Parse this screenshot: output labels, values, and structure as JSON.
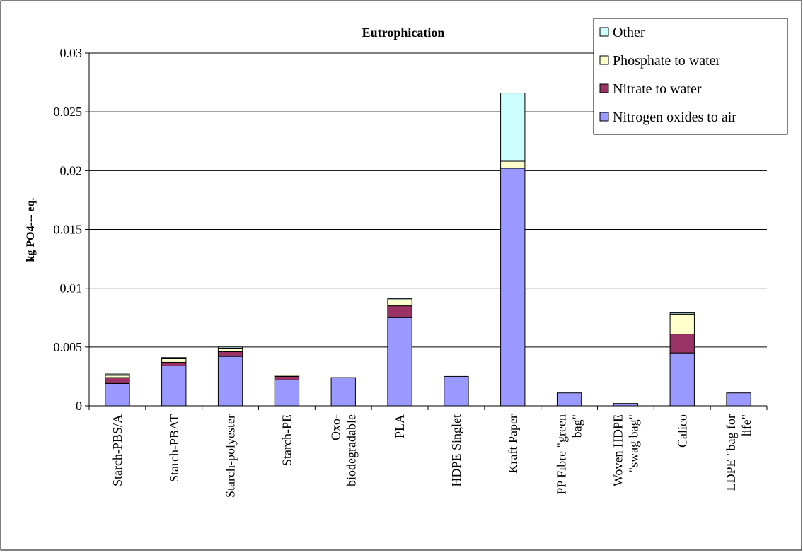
{
  "chart_data": {
    "type": "bar",
    "stacked": true,
    "title": "Eutrophication",
    "xlabel": "",
    "ylabel": "kg PO4--- eq.",
    "ylim": [
      0,
      0.03
    ],
    "yticks": [
      "0",
      "0.005",
      "0.01",
      "0.015",
      "0.02",
      "0.025",
      "0.03"
    ],
    "grid": "horizontal",
    "legend_position": "top-right",
    "categories": [
      "Starch-PBS/A",
      "Starch-PBAT",
      "Starch-polyester",
      "Starch-PE",
      "Oxo-biodegradable",
      "PLA",
      "HDPE Singlet",
      "Kraft Paper",
      "PP Fibre \"green bag\"",
      "Woven HDPE \"swag bag\"",
      "Calico",
      "LDPE \"bag for life\""
    ],
    "category_lines": [
      [
        "Starch-PBS/A"
      ],
      [
        "Starch-PBAT"
      ],
      [
        "Starch-polyester"
      ],
      [
        "Starch-PE"
      ],
      [
        "Oxo-",
        "biodegradable"
      ],
      [
        "PLA"
      ],
      [
        "HDPE Singlet"
      ],
      [
        "Kraft Paper"
      ],
      [
        "PP Fibre \"green",
        "bag\""
      ],
      [
        "Woven HDPE",
        "\"swag bag\""
      ],
      [
        "Calico"
      ],
      [
        "LDPE \"bag for",
        "life\""
      ]
    ],
    "series": [
      {
        "name": "Nitrogen oxides to air",
        "color": "#9999FF",
        "values": [
          0.0019,
          0.0034,
          0.0042,
          0.0022,
          0.0024,
          0.0075,
          0.0025,
          0.0202,
          0.0011,
          0.0002,
          0.0045,
          0.0011
        ]
      },
      {
        "name": "Nitrate to water",
        "color": "#993366",
        "values": [
          0.0005,
          0.0003,
          0.0004,
          0.0003,
          0.0,
          0.001,
          0.0,
          0.0,
          0.0,
          0.0,
          0.0016,
          0.0
        ]
      },
      {
        "name": "Phosphate to water",
        "color": "#FFFFCC",
        "values": [
          0.0002,
          0.0003,
          0.0003,
          0.0001,
          0.0,
          0.0005,
          0.0,
          0.0006,
          0.0,
          0.0,
          0.0017,
          0.0
        ]
      },
      {
        "name": "Other",
        "color": "#CCFFFF",
        "values": [
          0.0001,
          0.0001,
          0.0001,
          0.0,
          0.0,
          0.0001,
          0.0,
          0.0058,
          0.0,
          0.0,
          0.0001,
          0.0
        ]
      }
    ],
    "legend_order": [
      "Other",
      "Phosphate to water",
      "Nitrate to water",
      "Nitrogen oxides to air"
    ]
  }
}
